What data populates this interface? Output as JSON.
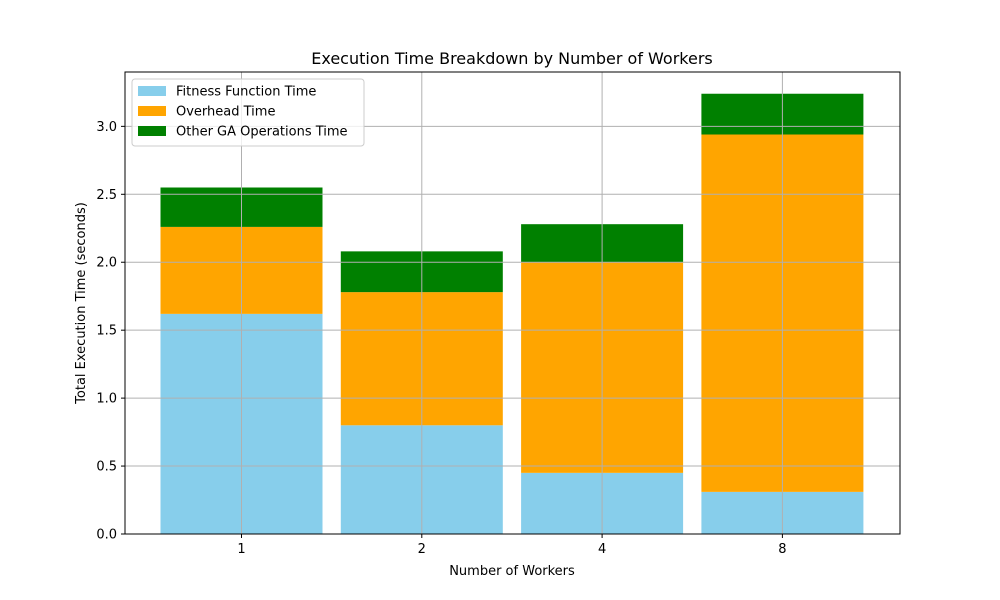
{
  "chart_data": {
    "type": "bar",
    "stacked": true,
    "title": "Execution Time Breakdown by Number of Workers",
    "xlabel": "Number of Workers",
    "ylabel": "Total Execution Time (seconds)",
    "categories": [
      "1",
      "2",
      "4",
      "8"
    ],
    "ylim": [
      0,
      3.4
    ],
    "yticks": [
      "0.0",
      "0.5",
      "1.0",
      "1.5",
      "2.0",
      "2.5",
      "3.0"
    ],
    "grid": true,
    "legend_position": "top-left",
    "series": [
      {
        "name": "Fitness Function Time",
        "color": "#87ceeb",
        "values": [
          1.62,
          0.8,
          0.45,
          0.31
        ]
      },
      {
        "name": "Overhead Time",
        "color": "#ffa500",
        "values": [
          0.64,
          0.98,
          1.55,
          2.63
        ]
      },
      {
        "name": "Other GA Operations Time",
        "color": "#008000",
        "values": [
          0.29,
          0.3,
          0.28,
          0.3
        ]
      }
    ]
  }
}
